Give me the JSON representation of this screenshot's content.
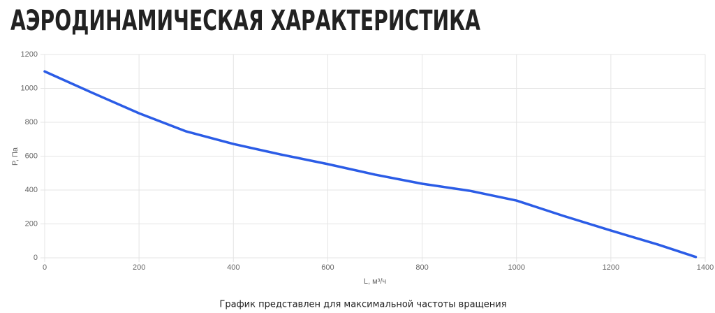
{
  "chart_data": {
    "type": "line",
    "title": "АЭРОДИНАМИЧЕСКАЯ ХАРАКТЕРИСТИКА",
    "x_label": "L, м³/ч",
    "y_label": "P, Па",
    "note": "График представлен для максимальной частоты вращения",
    "x": [
      0,
      100,
      200,
      300,
      400,
      500,
      600,
      700,
      800,
      900,
      1000,
      1100,
      1200,
      1300,
      1380
    ],
    "series": [
      {
        "color": "#2b5ce6",
        "values": [
          1100,
          975,
          853,
          746,
          672,
          610,
          553,
          491,
          437,
          396,
          338,
          247,
          161,
          78,
          5
        ]
      }
    ],
    "xlim": [
      0,
      1400
    ],
    "xticks": [
      0,
      200,
      400,
      600,
      800,
      1000,
      1200,
      1400
    ],
    "ylim": [
      0,
      1200
    ],
    "yticks": [
      0,
      200,
      400,
      600,
      800,
      1000,
      1200
    ],
    "grid": true
  }
}
